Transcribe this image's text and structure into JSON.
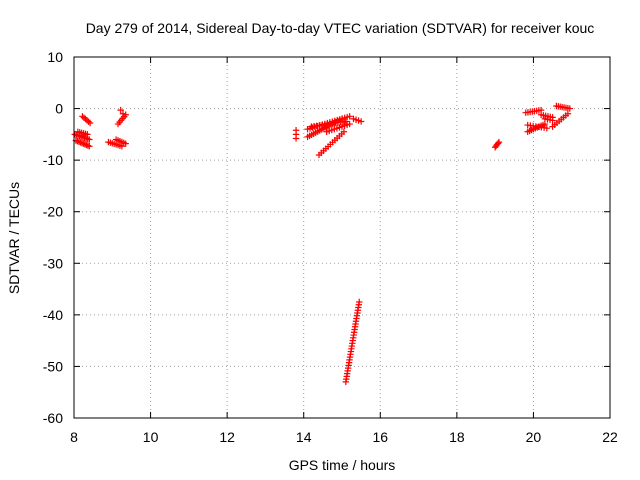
{
  "chart_data": {
    "type": "scatter",
    "title": "Day 279 of 2014, Sidereal Day-to-day VTEC variation (SDTVAR) for receiver kouc",
    "xlabel": "GPS time / hours",
    "ylabel": "SDTVAR / TECUs",
    "xlim": [
      8,
      22
    ],
    "ylim": [
      -60,
      10
    ],
    "xticks": [
      8,
      10,
      12,
      14,
      16,
      18,
      20,
      22
    ],
    "yticks": [
      10,
      0,
      -10,
      -20,
      -30,
      -40,
      -50,
      -60
    ],
    "xtick_labels": [
      "8",
      "10",
      "12",
      "14",
      "16",
      "18",
      "20",
      "22"
    ],
    "ytick_labels": [
      "10",
      "0",
      "-10",
      "-20",
      "-30",
      "-40",
      "-50",
      "-60"
    ],
    "grid": true,
    "marker": "+",
    "color": "#ff0000",
    "series": [
      {
        "name": "sdtvar",
        "segments": [
          {
            "x0": 8.02,
            "y0": -5.0,
            "x1": 8.4,
            "y1": -6.0,
            "n": 10
          },
          {
            "x0": 8.05,
            "y0": -6.2,
            "x1": 8.4,
            "y1": -7.3,
            "n": 10
          },
          {
            "x0": 8.1,
            "y0": -4.5,
            "x1": 8.35,
            "y1": -5.0,
            "n": 6
          },
          {
            "x0": 8.22,
            "y0": -1.5,
            "x1": 8.42,
            "y1": -2.8,
            "n": 6
          },
          {
            "x0": 8.9,
            "y0": -6.5,
            "x1": 9.25,
            "y1": -7.3,
            "n": 8
          },
          {
            "x0": 9.1,
            "y0": -6.0,
            "x1": 9.35,
            "y1": -6.8,
            "n": 6
          },
          {
            "x0": 9.15,
            "y0": -3.0,
            "x1": 9.35,
            "y1": -1.2,
            "n": 6
          },
          {
            "x0": 9.22,
            "y0": -0.3,
            "x1": 9.28,
            "y1": -1.0,
            "n": 2
          },
          {
            "x0": 13.8,
            "y0": -4.2,
            "x1": 13.8,
            "y1": -5.8,
            "n": 3
          },
          {
            "x0": 14.1,
            "y0": -5.5,
            "x1": 15.0,
            "y1": -2.0,
            "n": 18
          },
          {
            "x0": 14.1,
            "y0": -4.0,
            "x1": 15.2,
            "y1": -1.5,
            "n": 18
          },
          {
            "x0": 14.2,
            "y0": -3.5,
            "x1": 15.1,
            "y1": -2.5,
            "n": 14
          },
          {
            "x0": 14.4,
            "y0": -9.0,
            "x1": 15.05,
            "y1": -4.5,
            "n": 12
          },
          {
            "x0": 14.6,
            "y0": -4.5,
            "x1": 15.2,
            "y1": -3.0,
            "n": 10
          },
          {
            "x0": 15.3,
            "y0": -2.0,
            "x1": 15.5,
            "y1": -2.5,
            "n": 4
          },
          {
            "x0": 15.1,
            "y0": -53.0,
            "x1": 15.45,
            "y1": -37.5,
            "n": 30
          },
          {
            "x0": 19.0,
            "y0": -7.5,
            "x1": 19.1,
            "y1": -6.5,
            "n": 5
          },
          {
            "x0": 19.85,
            "y0": -4.5,
            "x1": 20.3,
            "y1": -3.0,
            "n": 10
          },
          {
            "x0": 19.85,
            "y0": -3.2,
            "x1": 20.35,
            "y1": -3.8,
            "n": 8
          },
          {
            "x0": 19.8,
            "y0": -0.8,
            "x1": 20.2,
            "y1": -0.3,
            "n": 8
          },
          {
            "x0": 20.2,
            "y0": -1.2,
            "x1": 20.5,
            "y1": -1.7,
            "n": 6
          },
          {
            "x0": 20.5,
            "y0": -3.5,
            "x1": 20.9,
            "y1": -1.0,
            "n": 8
          },
          {
            "x0": 20.6,
            "y0": 0.5,
            "x1": 20.95,
            "y1": 0.0,
            "n": 8
          },
          {
            "x0": 20.3,
            "y0": -2.0,
            "x1": 20.5,
            "y1": -2.3,
            "n": 4
          }
        ]
      }
    ]
  }
}
